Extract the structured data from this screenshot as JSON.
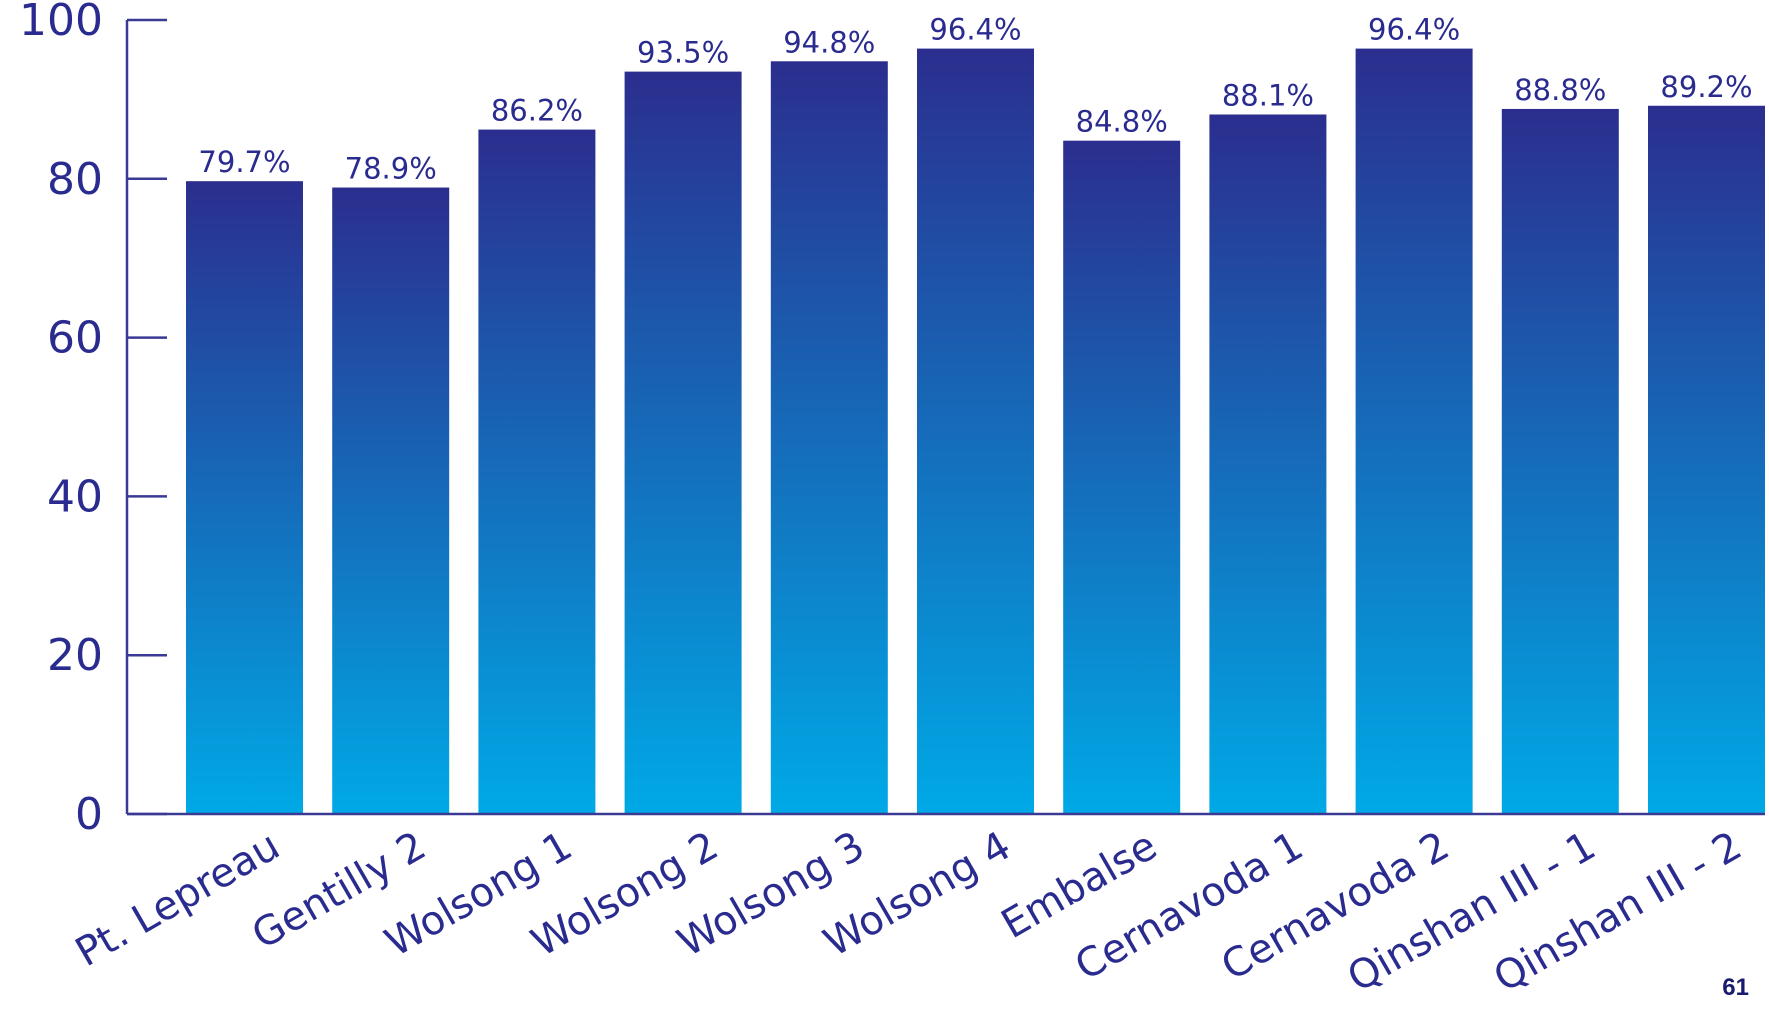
{
  "chart_data": {
    "type": "bar",
    "categories": [
      "Pt. Lepreau",
      "Gentilly 2",
      "Wolsong 1",
      "Wolsong 2",
      "Wolsong 3",
      "Wolsong 4",
      "Embalse",
      "Cernavoda 1",
      "Cernavoda 2",
      "Qinshan III - 1",
      "Qinshan III - 2"
    ],
    "values": [
      79.7,
      78.9,
      86.2,
      93.5,
      94.8,
      96.4,
      84.8,
      88.1,
      96.4,
      88.8,
      89.2
    ],
    "data_labels": [
      "79.7%",
      "78.9%",
      "86.2%",
      "93.5%",
      "94.8%",
      "96.4%",
      "84.8%",
      "88.1%",
      "96.4%",
      "88.8%",
      "89.2%"
    ],
    "title": "",
    "xlabel": "",
    "ylabel": "",
    "ylim": [
      0,
      100
    ],
    "yticks": [
      0,
      20,
      40,
      60,
      80,
      100
    ],
    "grid": false,
    "legend": "none",
    "colors": {
      "bar_top": "#2b2e8e",
      "bar_bottom": "#00a9e6",
      "axis": "#3a3a95",
      "text": "#2a2b8f"
    }
  },
  "page_number": "61"
}
